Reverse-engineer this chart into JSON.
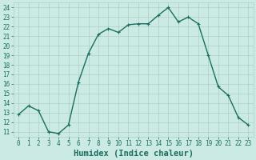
{
  "x": [
    0,
    1,
    2,
    3,
    4,
    5,
    6,
    7,
    8,
    9,
    10,
    11,
    12,
    13,
    14,
    15,
    16,
    17,
    18,
    19,
    20,
    21,
    22,
    23
  ],
  "y": [
    12.8,
    13.7,
    13.2,
    11.0,
    10.8,
    11.7,
    16.2,
    19.2,
    21.2,
    21.8,
    21.4,
    22.2,
    22.3,
    22.3,
    23.2,
    24.0,
    22.5,
    23.0,
    22.3,
    19.0,
    15.7,
    14.8,
    12.5,
    11.7
  ],
  "line_color": "#1a6e60",
  "marker": "+",
  "marker_size": 3,
  "marker_lw": 0.8,
  "bg_color": "#cceae4",
  "grid_color": "#aacfc8",
  "xlabel": "Humidex (Indice chaleur)",
  "ylim": [
    10.5,
    24.5
  ],
  "xlim": [
    -0.5,
    23.5
  ],
  "yticks": [
    11,
    12,
    13,
    14,
    15,
    16,
    17,
    18,
    19,
    20,
    21,
    22,
    23,
    24
  ],
  "xticks": [
    0,
    1,
    2,
    3,
    4,
    5,
    6,
    7,
    8,
    9,
    10,
    11,
    12,
    13,
    14,
    15,
    16,
    17,
    18,
    19,
    20,
    21,
    22,
    23
  ],
  "tick_fontsize": 5.5,
  "xlabel_fontsize": 7.5,
  "line_width": 1.0
}
